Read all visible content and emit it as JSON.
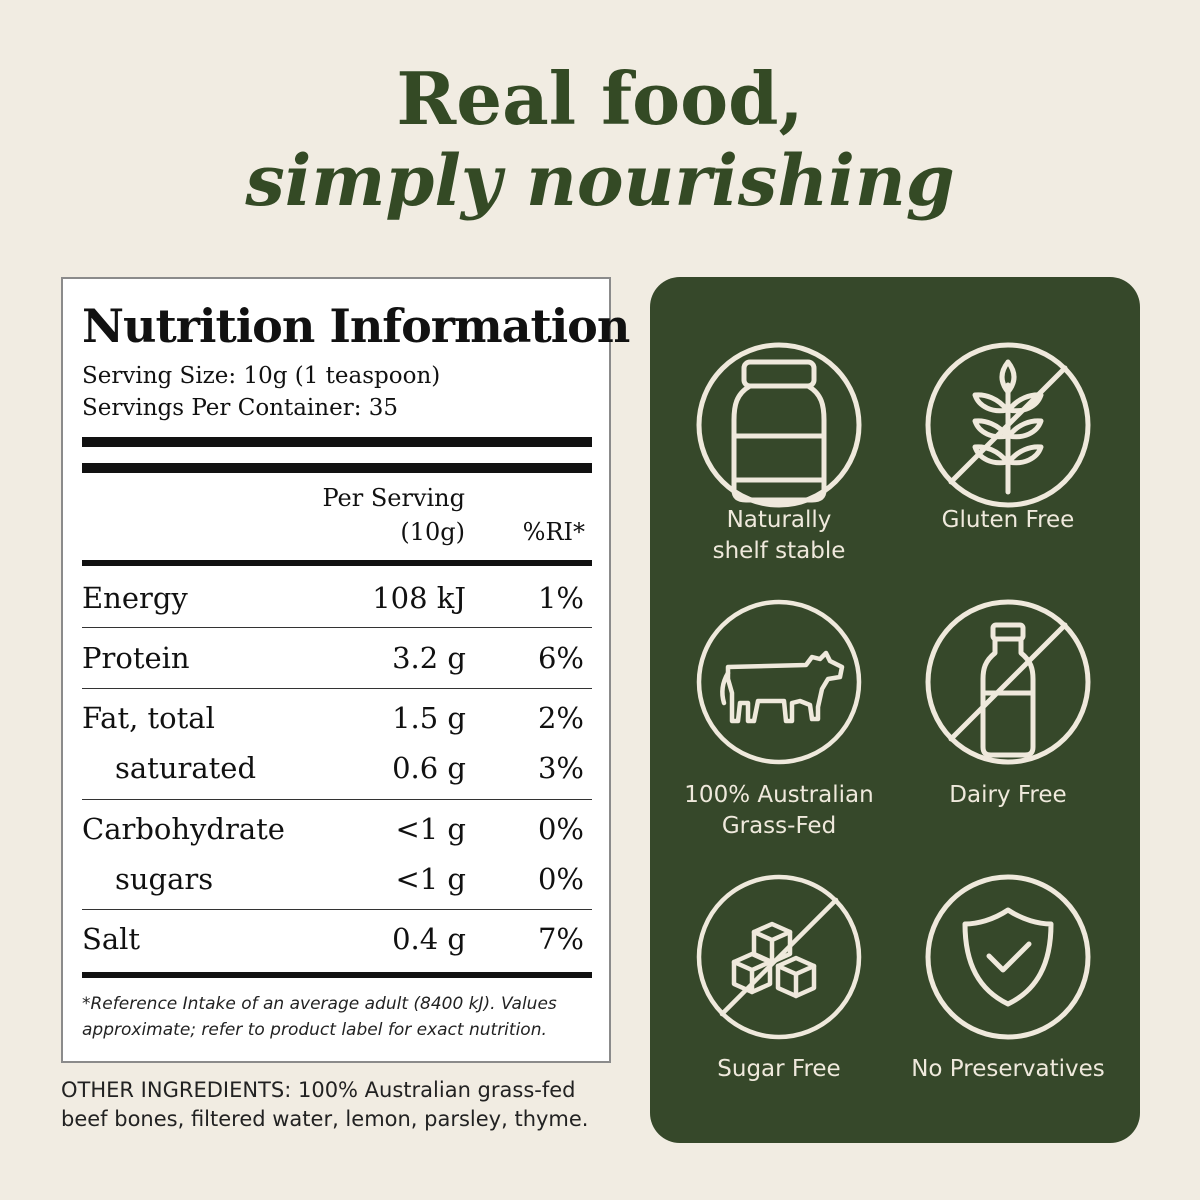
{
  "headline": {
    "line1": "Real food,",
    "line2": "simply nourishing"
  },
  "nutrition": {
    "title": "Nutrition Information",
    "serving_size": "Serving Size: 10g (1 teaspoon)",
    "servings_per_container": "Servings Per Container: 35",
    "col_per_serving_1": "Per Serving",
    "col_per_serving_2": "(10g)",
    "col_ri": "%RI*",
    "rows": [
      {
        "name": "Energy",
        "value": "108 kJ",
        "ri": "1%"
      },
      {
        "name": "Protein",
        "value": "3.2 g",
        "ri": "6%"
      },
      {
        "name": "Fat, total",
        "value": "1.5 g",
        "ri": "2%"
      },
      {
        "name": "saturated",
        "value": "0.6 g",
        "ri": "3%"
      },
      {
        "name": "Carbohydrate",
        "value": "<1 g",
        "ri": "0%"
      },
      {
        "name": "sugars",
        "value": "<1 g",
        "ri": "0%"
      },
      {
        "name": "Salt",
        "value": "0.4 g",
        "ri": "7%"
      }
    ],
    "footnote_1": "*Reference Intake of an average adult (8400 kJ). Values",
    "footnote_2": "approximate; refer to product label for exact nutrition."
  },
  "ingredients": {
    "line1": "OTHER INGREDIENTS: 100% Australian grass-fed",
    "line2": "beef bones, filtered water, lemon, parsley, thyme."
  },
  "features": [
    {
      "icon": "jar-icon",
      "label1": "Naturally",
      "label2": "shelf stable"
    },
    {
      "icon": "wheat-crossed-icon",
      "label1": "Gluten Free",
      "label2": ""
    },
    {
      "icon": "cow-icon",
      "label1": "100% Australian",
      "label2": "Grass-Fed"
    },
    {
      "icon": "milk-bottle-crossed-icon",
      "label1": "Dairy Free",
      "label2": ""
    },
    {
      "icon": "sugar-cubes-crossed-icon",
      "label1": "Sugar Free",
      "label2": ""
    },
    {
      "icon": "shield-check-icon",
      "label1": "No Preservatives",
      "label2": ""
    }
  ],
  "colors": {
    "background": "#f1ece2",
    "brand_green": "#36482a",
    "headline": "#344a25",
    "icon_line": "#efe9dc"
  }
}
